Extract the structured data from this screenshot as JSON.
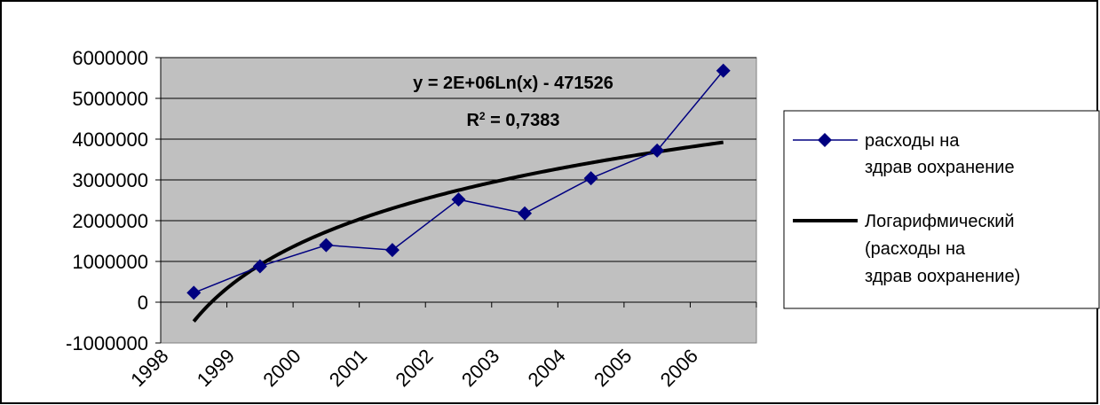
{
  "colors": {
    "plot_background": "#c0c0c0",
    "series_line": "#000080",
    "trend_line": "#000000",
    "grid": "#000000"
  },
  "chart_data": {
    "type": "line",
    "title": "",
    "xlabel": "",
    "ylabel": "",
    "categories": [
      "1998",
      "1999",
      "2000",
      "2001",
      "2002",
      "2003",
      "2004",
      "2005",
      "2006"
    ],
    "ylim": [
      -1000000,
      6000000
    ],
    "yticks": [
      "6000000",
      "5000000",
      "4000000",
      "3000000",
      "2000000",
      "1000000",
      "0",
      "-1000000"
    ],
    "grid": "horizontal",
    "legend_position": "right",
    "series": [
      {
        "name": "расходы на здравоохранение",
        "legend_lines": [
          "расходы на",
          "здрав оохранение"
        ],
        "marker": "diamond",
        "values": [
          230000,
          880000,
          1400000,
          1280000,
          2520000,
          2180000,
          3040000,
          3720000,
          5680000
        ]
      }
    ],
    "trendline": {
      "name": "Логарифмический (расходы на здравоохранение)",
      "legend_lines": [
        "Логарифмический",
        "(расходы на",
        "здрав оохранение)"
      ],
      "type": "logarithmic",
      "a": 2000000,
      "b": -471526
    },
    "annotations": {
      "equation": "y = 2E+06Ln(x) - 471526",
      "r2_prefix": "R",
      "r2_sup": "2",
      "r2_value": " = 0,7383"
    }
  }
}
